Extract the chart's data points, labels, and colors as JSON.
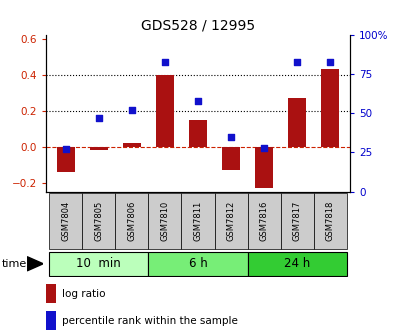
{
  "title": "GDS528 / 12995",
  "samples": [
    "GSM7804",
    "GSM7805",
    "GSM7806",
    "GSM7810",
    "GSM7811",
    "GSM7812",
    "GSM7816",
    "GSM7817",
    "GSM7818"
  ],
  "log_ratio": [
    -0.14,
    -0.02,
    0.02,
    0.4,
    0.15,
    -0.13,
    -0.23,
    0.27,
    0.43
  ],
  "percentile_rank": [
    27,
    47,
    52,
    83,
    58,
    35,
    28,
    83,
    83
  ],
  "bar_color": "#aa1111",
  "dot_color": "#1111cc",
  "ylim_left": [
    -0.25,
    0.62
  ],
  "ylim_right": [
    0,
    100
  ],
  "yticks_left": [
    -0.2,
    0.0,
    0.2,
    0.4,
    0.6
  ],
  "yticks_right": [
    0,
    25,
    50,
    75,
    100
  ],
  "ytick_labels_right": [
    "0",
    "25",
    "50",
    "75",
    "100%"
  ],
  "hlines": [
    0.2,
    0.4
  ],
  "groups": [
    {
      "label": "10  min",
      "start": 0,
      "end": 3,
      "color": "#bbffbb"
    },
    {
      "label": "6 h",
      "start": 3,
      "end": 6,
      "color": "#77ee77"
    },
    {
      "label": "24 h",
      "start": 6,
      "end": 9,
      "color": "#33cc33"
    }
  ],
  "time_label": "time",
  "legend_bar_label": "log ratio",
  "legend_dot_label": "percentile rank within the sample",
  "bg_color": "#ffffff",
  "tick_color_left": "#cc2200",
  "tick_color_right": "#0000cc",
  "sample_box_color": "#cccccc",
  "zero_line_color": "#cc2200"
}
